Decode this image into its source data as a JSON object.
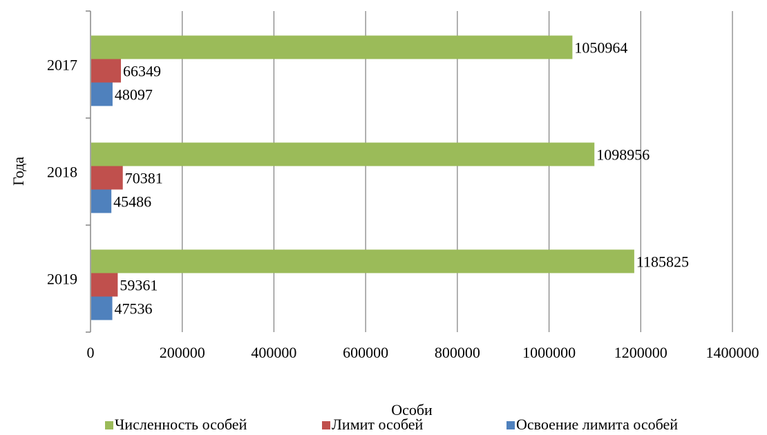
{
  "chart_data": {
    "type": "bar",
    "orientation": "horizontal",
    "categories": [
      "2017",
      "2018",
      "2019"
    ],
    "series": [
      {
        "name": "Численность особей",
        "color": "#9bbb59",
        "values": [
          1050964,
          1098956,
          1185825
        ]
      },
      {
        "name": "Лимит особей",
        "color": "#c0504d",
        "values": [
          66349,
          70381,
          59361
        ]
      },
      {
        "name": "Освоение лимита особей",
        "color": "#4f81bd",
        "values": [
          48097,
          45486,
          47536
        ]
      }
    ],
    "xlabel": "Особи",
    "ylabel": "Года",
    "xlim": [
      0,
      1400000
    ],
    "x_ticks": [
      "0",
      "200000",
      "400000",
      "600000",
      "800000",
      "1000000",
      "1200000",
      "1400000"
    ],
    "grid": "vertical",
    "legend_position": "bottom"
  }
}
